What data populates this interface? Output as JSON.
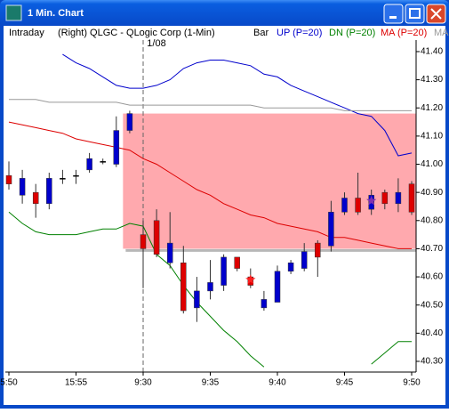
{
  "window": {
    "title": "1 Min. Chart"
  },
  "chart_data": {
    "type": "candlestick",
    "interval": "Intraday",
    "title": "(Right) QLGC - QLogic Corp (1-Min)",
    "style": "Bar",
    "categories": [
      "5:50",
      null,
      null,
      null,
      null,
      "15:55",
      null,
      null,
      null,
      null,
      "9:30",
      null,
      null,
      null,
      null,
      "9:35",
      null,
      null,
      null,
      null,
      "9:40",
      null,
      null,
      null,
      null,
      "9:45",
      null,
      null,
      null,
      null,
      "9:50"
    ],
    "open": [
      40.96,
      40.89,
      40.9,
      40.86,
      40.95,
      40.96,
      40.98,
      41.01,
      41.0,
      41.12,
      40.75,
      40.8,
      40.65,
      40.65,
      40.49,
      40.55,
      40.57,
      40.67,
      40.6,
      40.49,
      40.51,
      40.62,
      40.63,
      40.72,
      40.71,
      40.83,
      40.88,
      40.84,
      40.9,
      40.86,
      40.93
    ],
    "high": [
      41.01,
      40.98,
      40.93,
      40.97,
      40.98,
      40.98,
      41.04,
      41.02,
      41.17,
      41.19,
      40.8,
      40.84,
      40.83,
      40.71,
      40.6,
      40.66,
      40.68,
      40.67,
      40.63,
      40.55,
      40.64,
      40.66,
      40.72,
      40.73,
      40.87,
      40.9,
      40.97,
      40.91,
      40.91,
      40.95,
      40.94
    ],
    "low": [
      40.91,
      40.86,
      40.81,
      40.84,
      40.93,
      40.93,
      40.97,
      41.0,
      40.99,
      41.11,
      40.56,
      40.67,
      40.63,
      40.47,
      40.44,
      40.52,
      40.55,
      40.62,
      40.56,
      40.48,
      40.51,
      40.61,
      40.62,
      40.6,
      40.69,
      40.82,
      40.82,
      40.82,
      40.84,
      40.83,
      40.82
    ],
    "close": [
      40.93,
      40.95,
      40.86,
      40.95,
      40.95,
      40.96,
      41.02,
      41.01,
      41.12,
      41.18,
      40.7,
      40.68,
      40.72,
      40.48,
      40.55,
      40.58,
      40.67,
      40.63,
      40.57,
      40.52,
      40.62,
      40.65,
      40.69,
      40.67,
      40.83,
      40.88,
      40.83,
      40.89,
      40.86,
      40.9,
      40.83
    ],
    "up_color": "#0000cc",
    "down_color": "#dd0000",
    "flat_color": "#000000",
    "series": [
      {
        "name": "UP (P=20)",
        "color": "#0000cc",
        "values": [
          null,
          null,
          null,
          null,
          41.39,
          41.36,
          41.34,
          41.31,
          41.28,
          41.27,
          41.27,
          41.28,
          41.3,
          41.34,
          41.36,
          41.37,
          41.37,
          41.36,
          41.35,
          41.32,
          41.31,
          41.28,
          41.26,
          41.24,
          41.22,
          41.2,
          41.18,
          41.17,
          41.12,
          41.03,
          41.04
        ]
      },
      {
        "name": "DN (P=20)",
        "color": "#008000",
        "values": [
          40.83,
          40.79,
          40.76,
          40.75,
          40.75,
          40.75,
          40.76,
          40.77,
          40.77,
          40.79,
          40.78,
          40.68,
          40.64,
          40.57,
          40.51,
          40.46,
          40.41,
          40.37,
          40.32,
          40.28,
          null,
          null,
          null,
          null,
          null,
          null,
          null,
          40.29,
          40.33,
          40.37,
          40.37
        ]
      },
      {
        "name": "MA (P=20)",
        "color": "#dd0000",
        "values": [
          41.15,
          41.14,
          41.13,
          41.12,
          41.11,
          41.09,
          41.08,
          41.07,
          41.06,
          41.05,
          41.02,
          41.0,
          40.97,
          40.94,
          40.91,
          40.89,
          40.86,
          40.84,
          40.82,
          40.81,
          40.79,
          40.78,
          40.77,
          40.76,
          40.74,
          40.74,
          40.73,
          40.72,
          40.71,
          40.7,
          40.7
        ]
      },
      {
        "name": "MA",
        "color": "#999999",
        "values": [
          41.23,
          41.23,
          41.23,
          41.22,
          41.22,
          41.22,
          41.22,
          41.22,
          41.22,
          41.21,
          41.21,
          41.21,
          41.21,
          41.21,
          41.21,
          41.21,
          41.21,
          41.21,
          41.21,
          41.2,
          41.2,
          41.2,
          41.2,
          41.2,
          41.2,
          41.19,
          41.19,
          41.19,
          41.19,
          41.19,
          41.19
        ]
      }
    ],
    "zone": {
      "low": 40.7,
      "high": 41.18,
      "from_category": 9,
      "color": "#ff9aa0"
    },
    "session_break": {
      "category": 10,
      "label": "1/08"
    },
    "markers": [
      {
        "category": 18,
        "value": 40.59,
        "color": "#ff2020"
      },
      {
        "category": 27,
        "value": 40.87,
        "color": "#8030b0"
      }
    ],
    "ylim": [
      40.262,
      41.441
    ],
    "yticks": [
      {
        "value": 40.3,
        "label": "40.30"
      },
      {
        "value": 40.4,
        "label": "40.40"
      },
      {
        "value": 40.5,
        "label": "40.50"
      },
      {
        "value": 40.6,
        "label": "40.60"
      },
      {
        "value": 40.7,
        "label": "40.70"
      },
      {
        "value": 40.8,
        "label": "40.80"
      },
      {
        "value": 40.9,
        "label": "40.90"
      },
      {
        "value": 41.0,
        "label": "41.00"
      },
      {
        "value": 41.1,
        "label": "41.10"
      },
      {
        "value": 41.2,
        "label": "41.20"
      },
      {
        "value": 41.3,
        "label": "41.30"
      },
      {
        "value": 41.4,
        "label": "41.40"
      }
    ]
  }
}
